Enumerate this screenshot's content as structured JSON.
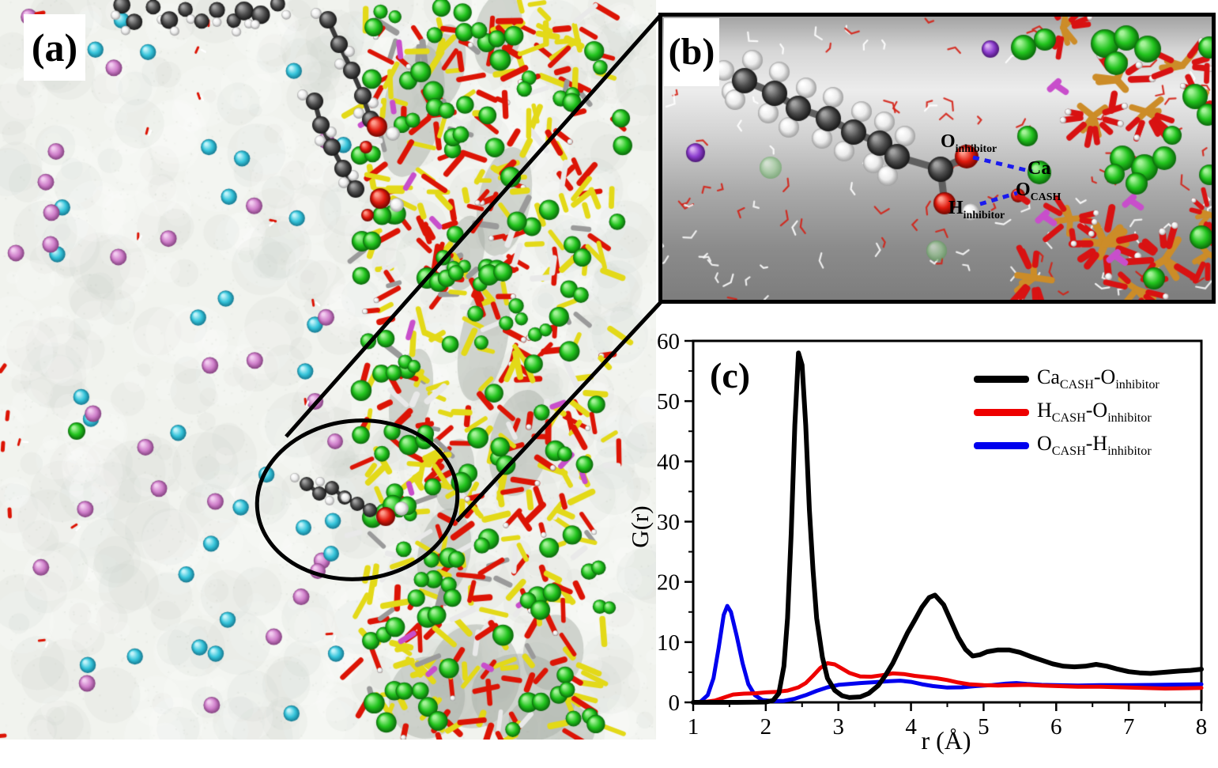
{
  "panels": {
    "a": {
      "label": "(a)"
    },
    "b": {
      "label": "(b)",
      "annotations": [
        {
          "id": "o-inhibitor",
          "main": "O",
          "sub": "inhibitor"
        },
        {
          "id": "ca",
          "main": "Ca",
          "sub": ""
        },
        {
          "id": "o-cash",
          "main": "O",
          "sub": "CASH"
        },
        {
          "id": "h-inhibitor",
          "main": "H",
          "sub": "inhibitor"
        }
      ]
    },
    "c": {
      "label": "(c)"
    }
  },
  "atom_legend": {
    "calcium_sphere": "#22c41e",
    "silicon_stick": "#e3d918",
    "oxygen_stick": "#dc1405",
    "carbon_sphere": "#4b4b4b",
    "hydrogen_sphere": "#ececec",
    "ion_cyan": "#36c4da",
    "ion_plum": "#cf7fca",
    "ion_purple": "#8d3ecf",
    "magenta_stick": "#c84ecb",
    "bridge_gold": "#cc8c28",
    "hbond_dashed": "#1a1aee"
  },
  "chart_data": {
    "type": "line",
    "title": "",
    "xlabel": "r (Å)",
    "ylabel": "G(r)",
    "xlim": [
      1,
      8
    ],
    "ylim": [
      0,
      60
    ],
    "xticks": [
      1,
      2,
      3,
      4,
      5,
      6,
      7,
      8
    ],
    "yticks": [
      0,
      10,
      20,
      30,
      40,
      50,
      60
    ],
    "x_minor_step": 0.5,
    "y_minor_step": 5,
    "grid": false,
    "legend_position": "top-right",
    "series": [
      {
        "name": "Ca_CASH-O_inhibitor",
        "color": "#000000",
        "width": 6,
        "label": {
          "p1": "Ca",
          "s1": "CASH",
          "p2": "-O",
          "s2": "inhibitor"
        },
        "points": [
          [
            1,
            0
          ],
          [
            1.6,
            0
          ],
          [
            2.0,
            0.05
          ],
          [
            2.1,
            0.3
          ],
          [
            2.18,
            1.5
          ],
          [
            2.25,
            6
          ],
          [
            2.3,
            14
          ],
          [
            2.35,
            28
          ],
          [
            2.4,
            46
          ],
          [
            2.45,
            58
          ],
          [
            2.5,
            56
          ],
          [
            2.55,
            46
          ],
          [
            2.6,
            32
          ],
          [
            2.65,
            22
          ],
          [
            2.7,
            14
          ],
          [
            2.78,
            7.5
          ],
          [
            2.85,
            4
          ],
          [
            2.95,
            2
          ],
          [
            3.05,
            1.1
          ],
          [
            3.15,
            0.8
          ],
          [
            3.3,
            0.9
          ],
          [
            3.42,
            1.5
          ],
          [
            3.55,
            2.8
          ],
          [
            3.65,
            4.5
          ],
          [
            3.75,
            6.5
          ],
          [
            3.85,
            9
          ],
          [
            3.95,
            11.5
          ],
          [
            4.05,
            13.6
          ],
          [
            4.15,
            15.8
          ],
          [
            4.25,
            17.4
          ],
          [
            4.33,
            17.8
          ],
          [
            4.45,
            16.2
          ],
          [
            4.55,
            13.5
          ],
          [
            4.65,
            10.8
          ],
          [
            4.75,
            8.8
          ],
          [
            4.85,
            7.7
          ],
          [
            4.95,
            7.9
          ],
          [
            5.05,
            8.4
          ],
          [
            5.2,
            8.7
          ],
          [
            5.35,
            8.7
          ],
          [
            5.5,
            8.3
          ],
          [
            5.65,
            7.6
          ],
          [
            5.8,
            7.0
          ],
          [
            5.95,
            6.4
          ],
          [
            6.1,
            6.0
          ],
          [
            6.25,
            5.9
          ],
          [
            6.4,
            6.0
          ],
          [
            6.55,
            6.3
          ],
          [
            6.7,
            6.0
          ],
          [
            6.85,
            5.5
          ],
          [
            7.0,
            5.1
          ],
          [
            7.15,
            4.9
          ],
          [
            7.3,
            4.8
          ],
          [
            7.5,
            5.0
          ],
          [
            7.7,
            5.2
          ],
          [
            7.85,
            5.3
          ],
          [
            8,
            5.5
          ]
        ]
      },
      {
        "name": "H_CASH-O_inhibitor",
        "color": "#ee0000",
        "width": 5,
        "label": {
          "p1": "H",
          "s1": "CASH",
          "p2": "-O",
          "s2": "inhibitor"
        },
        "points": [
          [
            1,
            0
          ],
          [
            1.15,
            0.05
          ],
          [
            1.3,
            0.3
          ],
          [
            1.45,
            0.9
          ],
          [
            1.55,
            1.3
          ],
          [
            1.7,
            1.45
          ],
          [
            1.85,
            1.5
          ],
          [
            2.0,
            1.65
          ],
          [
            2.15,
            1.75
          ],
          [
            2.3,
            1.95
          ],
          [
            2.45,
            2.5
          ],
          [
            2.55,
            3.2
          ],
          [
            2.65,
            4.4
          ],
          [
            2.75,
            5.7
          ],
          [
            2.85,
            6.5
          ],
          [
            2.95,
            6.3
          ],
          [
            3.05,
            5.6
          ],
          [
            3.15,
            4.9
          ],
          [
            3.3,
            4.3
          ],
          [
            3.45,
            4.25
          ],
          [
            3.6,
            4.5
          ],
          [
            3.75,
            4.8
          ],
          [
            3.9,
            4.7
          ],
          [
            4.05,
            4.4
          ],
          [
            4.2,
            4.2
          ],
          [
            4.35,
            4.0
          ],
          [
            4.5,
            3.7
          ],
          [
            4.65,
            3.3
          ],
          [
            4.8,
            3.0
          ],
          [
            5.0,
            2.85
          ],
          [
            5.2,
            2.8
          ],
          [
            5.4,
            2.85
          ],
          [
            5.6,
            2.9
          ],
          [
            5.8,
            2.8
          ],
          [
            6.0,
            2.7
          ],
          [
            6.3,
            2.6
          ],
          [
            6.6,
            2.6
          ],
          [
            6.9,
            2.5
          ],
          [
            7.2,
            2.4
          ],
          [
            7.5,
            2.3
          ],
          [
            7.8,
            2.35
          ],
          [
            8,
            2.4
          ]
        ]
      },
      {
        "name": "O_CASH-H_inhibitor",
        "color": "#0000ee",
        "width": 5,
        "label": {
          "p1": "O",
          "s1": "CASH",
          "p2": "-H",
          "s2": "inhibitor"
        },
        "points": [
          [
            1,
            0
          ],
          [
            1.1,
            0.1
          ],
          [
            1.2,
            1.2
          ],
          [
            1.28,
            4
          ],
          [
            1.35,
            9
          ],
          [
            1.42,
            14.5
          ],
          [
            1.47,
            16
          ],
          [
            1.52,
            15
          ],
          [
            1.6,
            11
          ],
          [
            1.68,
            6.5
          ],
          [
            1.76,
            3
          ],
          [
            1.85,
            1.2
          ],
          [
            1.95,
            0.4
          ],
          [
            2.1,
            0.2
          ],
          [
            2.25,
            0.25
          ],
          [
            2.4,
            0.6
          ],
          [
            2.55,
            1.2
          ],
          [
            2.7,
            1.9
          ],
          [
            2.85,
            2.5
          ],
          [
            3.0,
            2.9
          ],
          [
            3.15,
            3.05
          ],
          [
            3.3,
            3.2
          ],
          [
            3.5,
            3.35
          ],
          [
            3.7,
            3.5
          ],
          [
            3.85,
            3.6
          ],
          [
            4.0,
            3.4
          ],
          [
            4.15,
            3.0
          ],
          [
            4.3,
            2.7
          ],
          [
            4.5,
            2.45
          ],
          [
            4.7,
            2.5
          ],
          [
            4.9,
            2.7
          ],
          [
            5.1,
            2.85
          ],
          [
            5.3,
            3.1
          ],
          [
            5.45,
            3.2
          ],
          [
            5.6,
            3.05
          ],
          [
            5.8,
            2.9
          ],
          [
            6.0,
            2.85
          ],
          [
            6.3,
            2.8
          ],
          [
            6.6,
            2.85
          ],
          [
            7.0,
            2.85
          ],
          [
            7.4,
            2.9
          ],
          [
            7.7,
            2.95
          ],
          [
            8,
            3.0
          ]
        ]
      }
    ]
  }
}
